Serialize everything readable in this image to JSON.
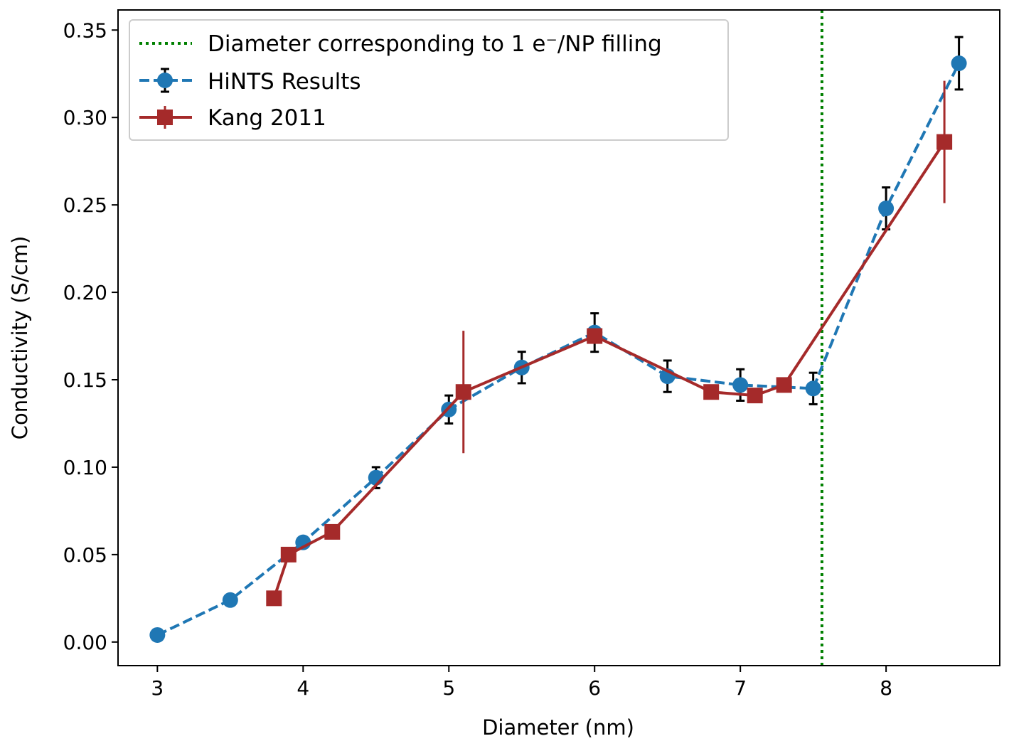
{
  "chart_data": {
    "type": "line",
    "title": "",
    "xlabel": "Diameter (nm)",
    "ylabel": "Conductivity (S/cm)",
    "xlim": [
      2.73,
      8.78
    ],
    "ylim": [
      -0.0135,
      0.3615
    ],
    "xticks": [
      3,
      4,
      5,
      6,
      7,
      8
    ],
    "xtick_labels": [
      "3",
      "4",
      "5",
      "6",
      "7",
      "8"
    ],
    "yticks": [
      0.0,
      0.05,
      0.1,
      0.15,
      0.2,
      0.25,
      0.3,
      0.35
    ],
    "ytick_labels": [
      "0.00",
      "0.05",
      "0.10",
      "0.15",
      "0.20",
      "0.25",
      "0.30",
      "0.35"
    ],
    "grid": false,
    "legend_position": "top-left",
    "vline": {
      "x": 7.56,
      "label": "Diameter corresponding to 1 e⁻/NP filling",
      "color": "#008000",
      "style": "dotted"
    },
    "series": [
      {
        "name": "HiNTS Results",
        "color": "#1f77b4",
        "line_style": "dashed",
        "marker": "circle",
        "x": [
          3.0,
          3.5,
          4.0,
          4.5,
          5.0,
          5.5,
          6.0,
          6.5,
          7.0,
          7.5,
          8.0,
          8.5
        ],
        "y": [
          0.004,
          0.024,
          0.057,
          0.094,
          0.133,
          0.157,
          0.177,
          0.152,
          0.147,
          0.145,
          0.248,
          0.331
        ],
        "yerr": [
          0.0,
          0.0,
          0.0,
          0.006,
          0.008,
          0.009,
          0.011,
          0.009,
          0.009,
          0.009,
          0.012,
          0.015
        ]
      },
      {
        "name": "Kang 2011",
        "color": "#a52a2a",
        "line_style": "solid",
        "marker": "square",
        "x": [
          3.8,
          3.9,
          4.2,
          5.1,
          6.0,
          6.8,
          7.1,
          7.3,
          8.4
        ],
        "y": [
          0.025,
          0.05,
          0.063,
          0.143,
          0.175,
          0.143,
          0.141,
          0.147,
          0.286
        ],
        "yerr": [
          0.0,
          0.0,
          0.0,
          0.035,
          0.0,
          0.0,
          0.0,
          0.0,
          0.035
        ]
      }
    ]
  }
}
